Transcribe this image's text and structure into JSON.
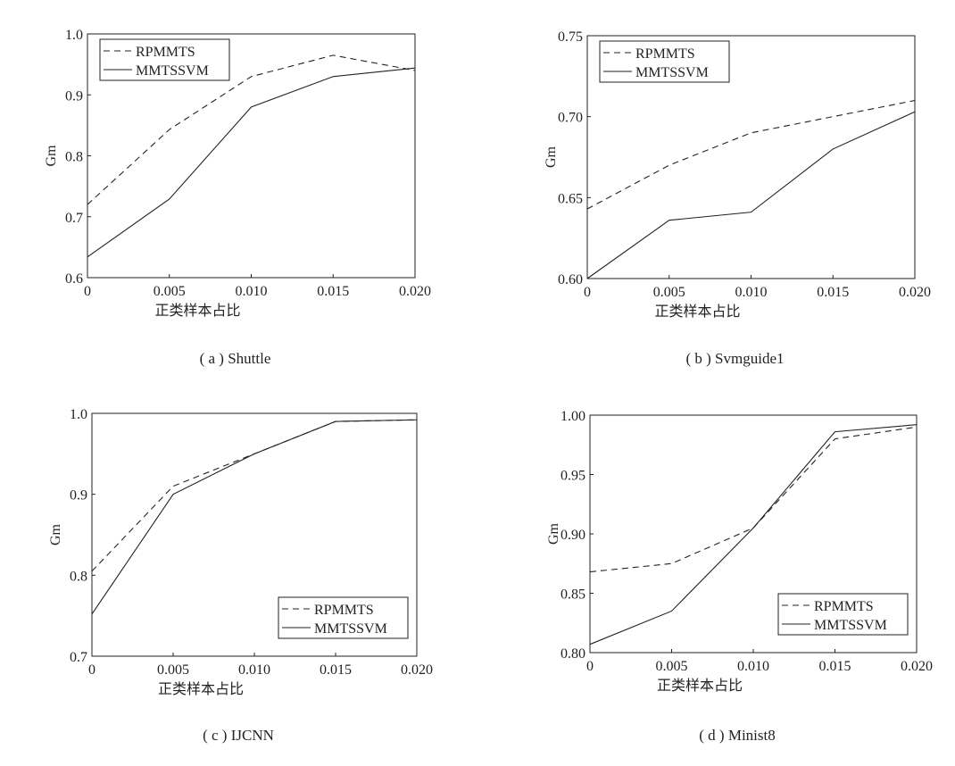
{
  "chart_data": [
    {
      "type": "line",
      "caption": "( a ) Shuttle",
      "xlabel": "正类样本占比",
      "ylabel": "Gm",
      "x": [
        0,
        0.005,
        0.01,
        0.015,
        0.02
      ],
      "xticks": [
        "0",
        "0.005",
        "0.010",
        "0.015",
        "0.020"
      ],
      "yticks": [
        "0.6",
        "0.7",
        "0.8",
        "0.9",
        "1.0"
      ],
      "ylim": [
        0.6,
        1.0
      ],
      "legend_position": "top-left",
      "series": [
        {
          "name": "RPMMTS",
          "style": "dashed",
          "values": [
            0.72,
            0.843,
            0.93,
            0.965,
            0.94
          ]
        },
        {
          "name": "MMTSSVM",
          "style": "solid",
          "values": [
            0.634,
            0.729,
            0.88,
            0.93,
            0.944
          ]
        }
      ]
    },
    {
      "type": "line",
      "caption": "( b ) Svmguide1",
      "xlabel": "正类样本占比",
      "ylabel": "Gm",
      "x": [
        0,
        0.005,
        0.01,
        0.015,
        0.02
      ],
      "xticks": [
        "0",
        "0.005",
        "0.010",
        "0.015",
        "0.020"
      ],
      "yticks": [
        "0.60",
        "0.65",
        "0.70",
        "0.75"
      ],
      "ylim": [
        0.6,
        0.75
      ],
      "legend_position": "top-left",
      "series": [
        {
          "name": "RPMMTS",
          "style": "dashed",
          "values": [
            0.643,
            0.67,
            0.69,
            0.7,
            0.71
          ]
        },
        {
          "name": "MMTSSVM",
          "style": "solid",
          "values": [
            0.6,
            0.636,
            0.641,
            0.68,
            0.703
          ]
        }
      ]
    },
    {
      "type": "line",
      "caption": "( c ) IJCNN",
      "xlabel": "正类样本占比",
      "ylabel": "Gm",
      "x": [
        0,
        0.005,
        0.01,
        0.015,
        0.02
      ],
      "xticks": [
        "0",
        "0.005",
        "0.010",
        "0.015",
        "0.020"
      ],
      "yticks": [
        "0.7",
        "0.8",
        "0.9",
        "1.0"
      ],
      "ylim": [
        0.7,
        1.0
      ],
      "legend_position": "bottom-right",
      "series": [
        {
          "name": "RPMMTS",
          "style": "dashed",
          "values": [
            0.805,
            0.91,
            0.95,
            0.99,
            0.992
          ]
        },
        {
          "name": "MMTSSVM",
          "style": "solid",
          "values": [
            0.752,
            0.9,
            0.95,
            0.99,
            0.992
          ]
        }
      ]
    },
    {
      "type": "line",
      "caption": "( d ) Minist8",
      "xlabel": "正类样本占比",
      "ylabel": "Gm",
      "x": [
        0,
        0.005,
        0.01,
        0.015,
        0.02
      ],
      "xticks": [
        "0",
        "0.005",
        "0.010",
        "0.015",
        "0.020"
      ],
      "yticks": [
        "0.80",
        "0.85",
        "0.90",
        "0.95",
        "1.00"
      ],
      "ylim": [
        0.8,
        1.0
      ],
      "legend_position": "bottom-right",
      "series": [
        {
          "name": "RPMMTS",
          "style": "dashed",
          "values": [
            0.868,
            0.875,
            0.905,
            0.98,
            0.99
          ]
        },
        {
          "name": "MMTSSVM",
          "style": "solid",
          "values": [
            0.807,
            0.835,
            0.905,
            0.986,
            0.992
          ]
        }
      ]
    }
  ]
}
